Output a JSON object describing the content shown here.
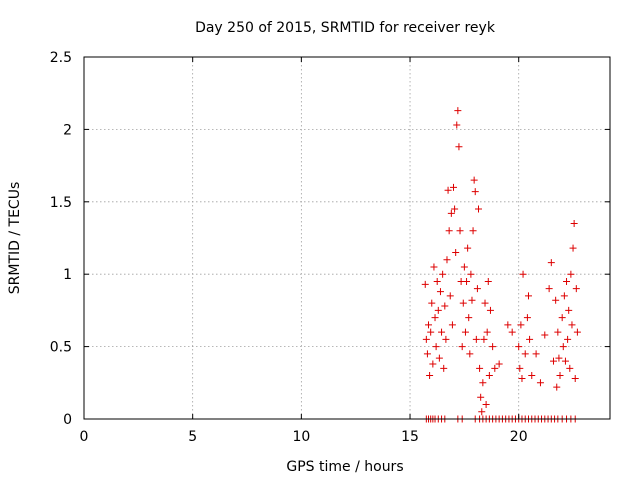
{
  "chart_data": {
    "type": "scatter",
    "title": "Day 250 of 2015, SRMTID for receiver reyk",
    "xlabel": "GPS time / hours",
    "ylabel": "SRMTID / TECUs",
    "xlim": [
      0,
      24.2
    ],
    "ylim": [
      0,
      2.5
    ],
    "x_ticks": [
      0,
      5,
      10,
      15,
      20
    ],
    "x_tick_labels": [
      "0",
      "5",
      "10",
      "15",
      "20"
    ],
    "y_ticks": [
      0,
      0.5,
      1,
      1.5,
      2,
      2.5
    ],
    "y_tick_labels": [
      "0",
      "0.5",
      "1",
      "1.5",
      "2",
      "2.5"
    ],
    "grid": true,
    "marker": "+",
    "series": [
      {
        "name": "SRMTID",
        "color": "#dd0000",
        "points": [
          [
            15.7,
            0.93
          ],
          [
            15.75,
            0.55
          ],
          [
            15.8,
            0.45
          ],
          [
            15.85,
            0.65
          ],
          [
            15.9,
            0.3
          ],
          [
            15.95,
            0.6
          ],
          [
            16.0,
            0.8
          ],
          [
            16.05,
            0.38
          ],
          [
            16.1,
            1.05
          ],
          [
            16.15,
            0.7
          ],
          [
            16.2,
            0.5
          ],
          [
            16.25,
            0.95
          ],
          [
            16.3,
            0.75
          ],
          [
            16.35,
            0.42
          ],
          [
            16.4,
            0.88
          ],
          [
            16.45,
            0.6
          ],
          [
            16.5,
            1.0
          ],
          [
            16.55,
            0.35
          ],
          [
            16.6,
            0.78
          ],
          [
            16.65,
            0.55
          ],
          [
            16.7,
            1.1
          ],
          [
            16.75,
            1.58
          ],
          [
            16.8,
            1.3
          ],
          [
            16.85,
            0.85
          ],
          [
            16.9,
            1.42
          ],
          [
            16.95,
            0.65
          ],
          [
            17.0,
            1.6
          ],
          [
            17.05,
            1.45
          ],
          [
            17.1,
            1.15
          ],
          [
            17.15,
            2.03
          ],
          [
            17.2,
            2.13
          ],
          [
            17.25,
            1.88
          ],
          [
            17.3,
            1.3
          ],
          [
            17.35,
            0.95
          ],
          [
            17.4,
            0.5
          ],
          [
            17.45,
            0.8
          ],
          [
            17.5,
            1.05
          ],
          [
            17.55,
            0.6
          ],
          [
            17.6,
            0.95
          ],
          [
            17.65,
            1.18
          ],
          [
            17.7,
            0.7
          ],
          [
            17.75,
            0.45
          ],
          [
            17.8,
            1.0
          ],
          [
            17.85,
            0.82
          ],
          [
            17.9,
            1.3
          ],
          [
            17.95,
            1.65
          ],
          [
            18.0,
            1.57
          ],
          [
            18.05,
            0.55
          ],
          [
            18.1,
            0.9
          ],
          [
            18.15,
            1.45
          ],
          [
            18.2,
            0.35
          ],
          [
            18.25,
            0.15
          ],
          [
            18.3,
            0.05
          ],
          [
            18.35,
            0.25
          ],
          [
            18.4,
            0.55
          ],
          [
            18.45,
            0.8
          ],
          [
            18.5,
            0.1
          ],
          [
            18.55,
            0.6
          ],
          [
            18.6,
            0.95
          ],
          [
            18.65,
            0.3
          ],
          [
            18.7,
            0.75
          ],
          [
            18.8,
            0.5
          ],
          [
            18.9,
            0.35
          ],
          [
            19.1,
            0.38
          ],
          [
            19.5,
            0.65
          ],
          [
            19.7,
            0.6
          ],
          [
            20.0,
            0.5
          ],
          [
            20.05,
            0.35
          ],
          [
            20.1,
            0.65
          ],
          [
            20.15,
            0.28
          ],
          [
            20.2,
            1.0
          ],
          [
            20.3,
            0.45
          ],
          [
            20.4,
            0.7
          ],
          [
            20.45,
            0.85
          ],
          [
            20.5,
            0.55
          ],
          [
            20.6,
            0.3
          ],
          [
            20.8,
            0.45
          ],
          [
            21.0,
            0.25
          ],
          [
            21.2,
            0.58
          ],
          [
            21.4,
            0.9
          ],
          [
            21.5,
            1.08
          ],
          [
            21.6,
            0.4
          ],
          [
            21.7,
            0.82
          ],
          [
            21.75,
            0.22
          ],
          [
            21.8,
            0.6
          ],
          [
            21.85,
            0.42
          ],
          [
            21.9,
            0.3
          ],
          [
            22.0,
            0.7
          ],
          [
            22.05,
            0.5
          ],
          [
            22.1,
            0.85
          ],
          [
            22.15,
            0.4
          ],
          [
            22.2,
            0.95
          ],
          [
            22.25,
            0.55
          ],
          [
            22.3,
            0.75
          ],
          [
            22.35,
            0.35
          ],
          [
            22.4,
            1.0
          ],
          [
            22.45,
            0.65
          ],
          [
            22.5,
            1.18
          ],
          [
            22.55,
            1.35
          ],
          [
            22.6,
            0.28
          ],
          [
            22.65,
            0.9
          ],
          [
            22.7,
            0.6
          ],
          [
            15.75,
            0.0
          ],
          [
            15.85,
            0.0
          ],
          [
            15.95,
            0.0
          ],
          [
            16.05,
            0.0
          ],
          [
            16.15,
            0.0
          ],
          [
            16.3,
            0.0
          ],
          [
            16.45,
            0.0
          ],
          [
            16.6,
            0.0
          ],
          [
            17.2,
            0.0
          ],
          [
            17.4,
            0.0
          ],
          [
            18.0,
            0.0
          ],
          [
            18.2,
            0.0
          ],
          [
            18.35,
            0.0
          ],
          [
            18.5,
            0.0
          ],
          [
            18.65,
            0.0
          ],
          [
            18.8,
            0.0
          ],
          [
            18.95,
            0.0
          ],
          [
            19.1,
            0.0
          ],
          [
            19.25,
            0.0
          ],
          [
            19.4,
            0.0
          ],
          [
            19.55,
            0.0
          ],
          [
            19.7,
            0.0
          ],
          [
            19.85,
            0.0
          ],
          [
            20.0,
            0.0
          ],
          [
            20.15,
            0.0
          ],
          [
            20.3,
            0.0
          ],
          [
            20.45,
            0.0
          ],
          [
            20.6,
            0.0
          ],
          [
            20.75,
            0.0
          ],
          [
            20.9,
            0.0
          ],
          [
            21.05,
            0.0
          ],
          [
            21.2,
            0.0
          ],
          [
            21.35,
            0.0
          ],
          [
            21.5,
            0.0
          ],
          [
            21.65,
            0.0
          ],
          [
            21.8,
            0.0
          ],
          [
            22.0,
            0.0
          ],
          [
            22.2,
            0.0
          ],
          [
            22.4,
            0.0
          ],
          [
            22.6,
            0.0
          ]
        ]
      }
    ]
  }
}
